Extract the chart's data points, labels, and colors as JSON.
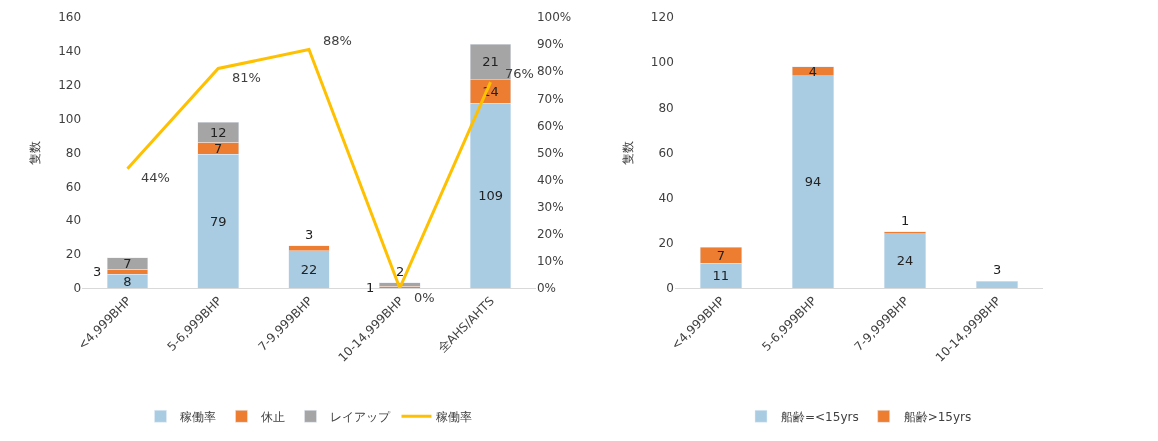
{
  "chart_data": [
    {
      "type": "bar",
      "stacked": true,
      "categories": [
        "<4,999BHP",
        "5-6,999BHP",
        "7-9,999BHP",
        "10-14,999BHP",
        "全AHS/AHTS"
      ],
      "ylabel": "隻数",
      "ylim": [
        0,
        160
      ],
      "yticks": [
        0,
        20,
        40,
        60,
        80,
        100,
        120,
        140,
        160
      ],
      "y2lim": [
        0,
        100
      ],
      "y2ticks": [
        {
          "value": 0,
          "label": "0%"
        },
        {
          "value": 10,
          "label": "10%"
        },
        {
          "value": 20,
          "label": "20%"
        },
        {
          "value": 30,
          "label": "30%"
        },
        {
          "value": 40,
          "label": "40%"
        },
        {
          "value": 50,
          "label": "50%"
        },
        {
          "value": 60,
          "label": "60%"
        },
        {
          "value": 70,
          "label": "70%"
        },
        {
          "value": 80,
          "label": "80%"
        },
        {
          "value": 90,
          "label": "90%"
        },
        {
          "value": 100,
          "label": "100%"
        }
      ],
      "legend": "bottom",
      "grid": false,
      "series": [
        {
          "name": "稼働率",
          "color": "#a9cce3",
          "values": [
            8,
            79,
            22,
            0,
            109
          ],
          "value_labels": [
            "8",
            "79",
            "22",
            null,
            "109"
          ]
        },
        {
          "name": "休止",
          "color": "#ed7d31",
          "values": [
            3,
            7,
            3,
            1,
            14
          ],
          "value_labels": [
            "3",
            "7",
            "3",
            "1",
            "14"
          ]
        },
        {
          "name": "レイアップ",
          "color": "#a5a5a5",
          "values": [
            7,
            12,
            null,
            2,
            21
          ],
          "value_labels": [
            "7",
            "12",
            null,
            "2",
            "21"
          ]
        },
        {
          "name": "稼働率",
          "type": "line",
          "axis": "y2",
          "color": "#ffc000",
          "values": [
            44,
            81,
            88,
            0,
            76
          ],
          "value_labels": [
            "44%",
            "81%",
            "88%",
            "0%",
            "76%"
          ]
        }
      ]
    },
    {
      "type": "bar",
      "stacked": true,
      "categories": [
        "<4,999BHP",
        "5-6,999BHP",
        "7-9,999BHP",
        "10-14,999BHP"
      ],
      "ylabel": "隻数",
      "ylim": [
        0,
        120
      ],
      "yticks": [
        0,
        20,
        40,
        60,
        80,
        100,
        120
      ],
      "legend": "bottom",
      "grid": false,
      "series": [
        {
          "name": "船齢=<15yrs",
          "color": "#a9cce3",
          "values": [
            11,
            94,
            24,
            3
          ],
          "value_labels": [
            "11",
            "94",
            "24",
            "3"
          ]
        },
        {
          "name": "船齢>15yrs",
          "color": "#ed7d31",
          "values": [
            7,
            4,
            1,
            null
          ],
          "value_labels": [
            "7",
            "4",
            "1",
            null
          ]
        }
      ]
    }
  ]
}
